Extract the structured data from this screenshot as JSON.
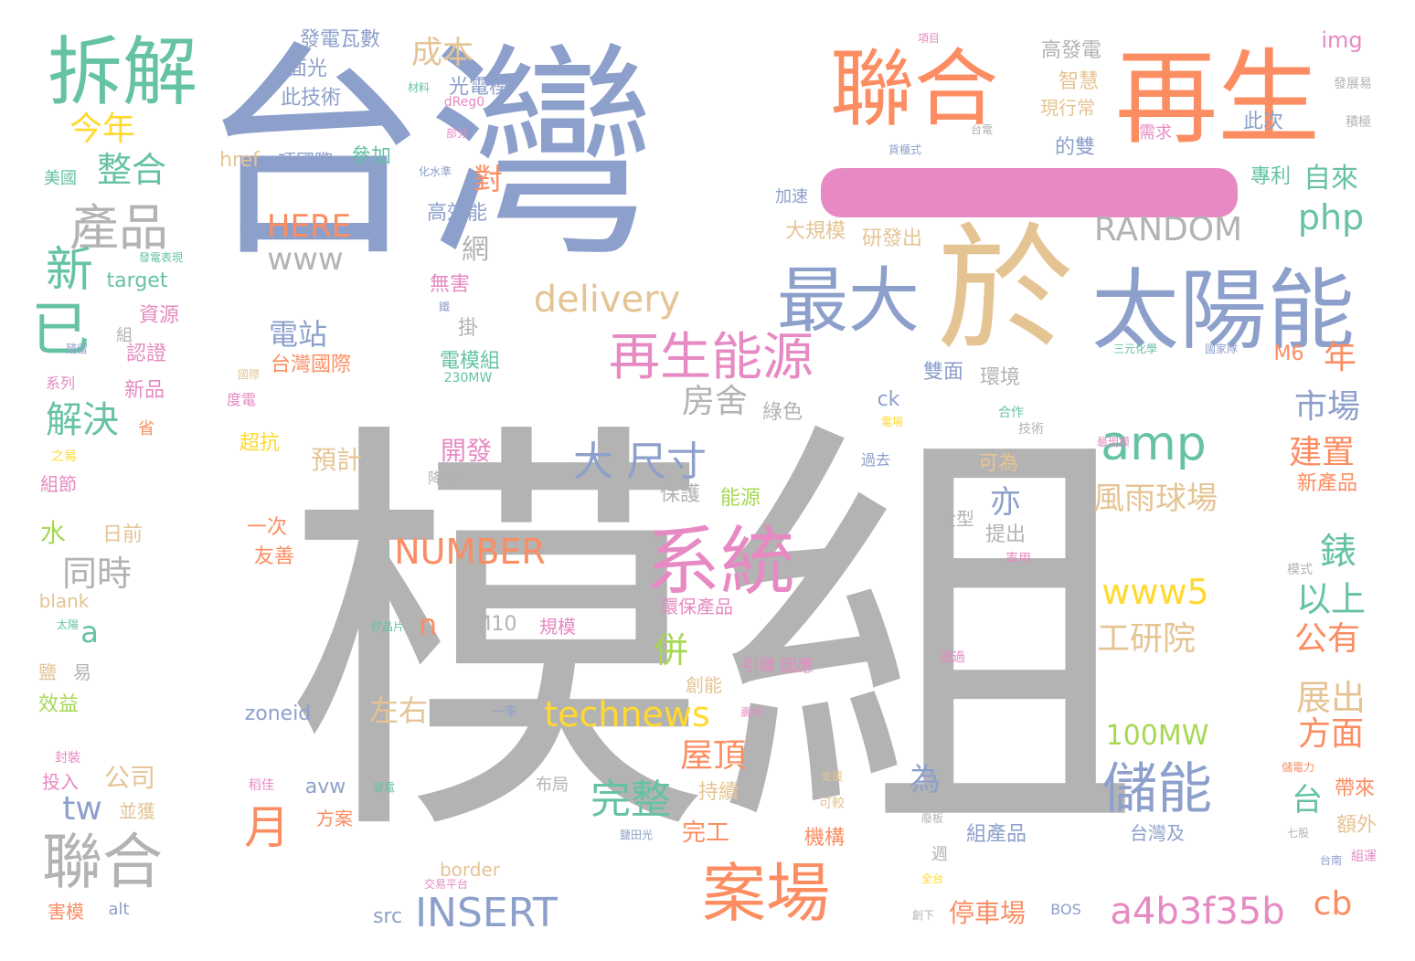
{
  "colors": {
    "gray": "#b3b3b3",
    "blue": "#8da0cb",
    "orange": "#fc8d62",
    "tan": "#e5c494",
    "green": "#66c2a5",
    "pink": "#e78ac3",
    "lime": "#a6d854",
    "yellow": "#ffd92f"
  },
  "accent_bar_color": "#e78ac3",
  "words": [
    {
      "text": "模組",
      "color": "gray"
    },
    {
      "text": "台灣",
      "color": "blue"
    },
    {
      "text": "聯合",
      "color": "orange"
    },
    {
      "text": "再生",
      "color": "orange"
    },
    {
      "text": "於",
      "color": "tan"
    },
    {
      "text": "太陽能",
      "color": "blue"
    },
    {
      "text": "最大",
      "color": "blue"
    },
    {
      "text": "拆解",
      "color": "green"
    },
    {
      "text": "系統",
      "color": "pink"
    },
    {
      "text": "案場",
      "color": "orange"
    },
    {
      "text": "再生能源",
      "color": "pink"
    },
    {
      "text": "聯合",
      "color": "gray"
    },
    {
      "text": "產品",
      "color": "gray"
    },
    {
      "text": "儲能",
      "color": "blue"
    },
    {
      "text": "已",
      "color": "green"
    },
    {
      "text": "新",
      "color": "green"
    },
    {
      "text": "月",
      "color": "orange"
    },
    {
      "text": "amp",
      "color": "green"
    },
    {
      "text": "INSERT",
      "color": "blue"
    },
    {
      "text": "a4b3f35b",
      "color": "pink"
    },
    {
      "text": "technews",
      "color": "yellow"
    },
    {
      "text": "大 尺寸",
      "color": "blue"
    },
    {
      "text": "delivery",
      "color": "tan"
    },
    {
      "text": "NUMBER",
      "color": "orange"
    },
    {
      "text": "HERE",
      "color": "orange"
    },
    {
      "text": "www",
      "color": "gray"
    },
    {
      "text": "RANDOM",
      "color": "gray"
    },
    {
      "text": "www5",
      "color": "yellow"
    },
    {
      "text": "工研院",
      "color": "tan"
    },
    {
      "text": "100MW",
      "color": "lime"
    },
    {
      "text": "完整",
      "color": "green"
    },
    {
      "text": "屋頂",
      "color": "orange"
    },
    {
      "text": "展出",
      "color": "tan"
    },
    {
      "text": "方面",
      "color": "orange"
    },
    {
      "text": "公有",
      "color": "orange"
    },
    {
      "text": "以上",
      "color": "green"
    },
    {
      "text": "錶",
      "color": "green"
    },
    {
      "text": "市場",
      "color": "blue"
    },
    {
      "text": "建置",
      "color": "orange"
    },
    {
      "text": "風雨球場",
      "color": "tan"
    },
    {
      "text": "php",
      "color": "green"
    },
    {
      "text": "自來",
      "color": "green"
    },
    {
      "text": "年",
      "color": "orange"
    },
    {
      "text": "整合",
      "color": "green"
    },
    {
      "text": "今年",
      "color": "yellow"
    },
    {
      "text": "成本",
      "color": "tan"
    },
    {
      "text": "解決",
      "color": "green"
    },
    {
      "text": "同時",
      "color": "gray"
    },
    {
      "text": "併",
      "color": "lime"
    },
    {
      "text": "房舍",
      "color": "gray"
    },
    {
      "text": "電站",
      "color": "blue"
    },
    {
      "text": "a",
      "color": "green"
    },
    {
      "text": "tw",
      "color": "blue"
    },
    {
      "text": "n",
      "color": "orange"
    },
    {
      "text": "cb",
      "color": "orange"
    },
    {
      "text": "台",
      "color": "green"
    },
    {
      "text": "為",
      "color": "blue"
    },
    {
      "text": "亦",
      "color": "blue"
    },
    {
      "text": "對",
      "color": "orange"
    },
    {
      "text": "網",
      "color": "gray"
    },
    {
      "text": "左右",
      "color": "tan"
    },
    {
      "text": "停車場",
      "color": "orange"
    },
    {
      "text": "公司",
      "color": "tan"
    },
    {
      "text": "水",
      "color": "lime"
    },
    {
      "text": "開發",
      "color": "pink"
    },
    {
      "text": "預計",
      "color": "tan"
    },
    {
      "text": "大規模",
      "color": "tan"
    },
    {
      "text": "研發出",
      "color": "tan"
    },
    {
      "text": "高效能",
      "color": "blue"
    },
    {
      "text": "無害",
      "color": "pink"
    },
    {
      "text": "掛",
      "color": "gray"
    },
    {
      "text": "台灣國際",
      "color": "orange"
    },
    {
      "text": "電模組",
      "color": "green"
    },
    {
      "text": "雙面",
      "color": "blue"
    },
    {
      "text": "環境",
      "color": "gray"
    },
    {
      "text": "綠色",
      "color": "gray"
    },
    {
      "text": "M6",
      "color": "orange"
    },
    {
      "text": "新產品",
      "color": "orange"
    },
    {
      "text": "帶來",
      "color": "orange"
    },
    {
      "text": "額外",
      "color": "tan"
    },
    {
      "text": "組產品",
      "color": "blue"
    },
    {
      "text": "台灣及",
      "color": "blue"
    },
    {
      "text": "完工",
      "color": "orange"
    },
    {
      "text": "機構",
      "color": "orange"
    },
    {
      "text": "持續",
      "color": "tan"
    },
    {
      "text": "創能",
      "color": "tan"
    },
    {
      "text": "保護",
      "color": "gray"
    },
    {
      "text": "能源",
      "color": "lime"
    },
    {
      "text": "一次",
      "color": "orange"
    },
    {
      "text": "友善",
      "color": "orange"
    },
    {
      "text": "日前",
      "color": "tan"
    },
    {
      "text": "超抗",
      "color": "yellow"
    },
    {
      "text": "ck",
      "color": "blue"
    },
    {
      "text": "可為",
      "color": "tan"
    },
    {
      "text": "大型",
      "color": "gray"
    },
    {
      "text": "提出",
      "color": "gray"
    },
    {
      "text": "環保產品",
      "color": "pink"
    },
    {
      "text": "引導",
      "color": "pink"
    },
    {
      "text": "因應",
      "color": "pink"
    },
    {
      "text": "M10",
      "color": "gray"
    },
    {
      "text": "規模",
      "color": "pink"
    },
    {
      "text": "zoneid",
      "color": "blue"
    },
    {
      "text": "avw",
      "color": "blue"
    },
    {
      "text": "方案",
      "color": "orange"
    },
    {
      "text": "border",
      "color": "tan"
    },
    {
      "text": "src",
      "color": "blue"
    },
    {
      "text": "alt",
      "color": "blue"
    },
    {
      "text": "BOS",
      "color": "blue"
    },
    {
      "text": "blank",
      "color": "tan"
    },
    {
      "text": "target",
      "color": "green"
    },
    {
      "text": "href",
      "color": "tan"
    },
    {
      "text": "img",
      "color": "pink"
    },
    {
      "text": "dReg0",
      "color": "pink"
    },
    {
      "text": "光電模",
      "color": "blue"
    },
    {
      "text": "此技術",
      "color": "blue"
    },
    {
      "text": "面光",
      "color": "blue"
    },
    {
      "text": "發電瓦數",
      "color": "blue"
    },
    {
      "text": "項國際",
      "color": "blue"
    },
    {
      "text": "參加",
      "color": "green"
    },
    {
      "text": "高發電",
      "color": "gray"
    },
    {
      "text": "智慧",
      "color": "tan"
    },
    {
      "text": "現行常",
      "color": "tan"
    },
    {
      "text": "的雙",
      "color": "blue"
    },
    {
      "text": "此次",
      "color": "blue"
    },
    {
      "text": "需求",
      "color": "pink"
    },
    {
      "text": "專利",
      "color": "green"
    },
    {
      "text": "美國",
      "color": "green"
    },
    {
      "text": "資源",
      "color": "pink"
    },
    {
      "text": "認證",
      "color": "pink"
    },
    {
      "text": "新品",
      "color": "pink"
    },
    {
      "text": "系列",
      "color": "pink"
    },
    {
      "text": "組節",
      "color": "pink"
    },
    {
      "text": "鹽",
      "color": "tan"
    },
    {
      "text": "易",
      "color": "gray"
    },
    {
      "text": "效益",
      "color": "lime"
    },
    {
      "text": "投入",
      "color": "pink"
    },
    {
      "text": "並獲",
      "color": "tan"
    },
    {
      "text": "害模",
      "color": "orange"
    },
    {
      "text": "加速",
      "color": "blue"
    },
    {
      "text": "省",
      "color": "orange"
    },
    {
      "text": "組",
      "color": "gray"
    },
    {
      "text": "度電",
      "color": "pink"
    },
    {
      "text": "過去",
      "color": "blue"
    },
    {
      "text": "技術",
      "color": "gray"
    },
    {
      "text": "合作",
      "color": "green"
    },
    {
      "text": "降低",
      "color": "gray"
    },
    {
      "text": "布局",
      "color": "gray"
    },
    {
      "text": "週",
      "color": "gray"
    },
    {
      "text": "模式",
      "color": "gray"
    },
    {
      "text": "組運",
      "color": "pink"
    },
    {
      "text": "三元化學",
      "color": "green"
    },
    {
      "text": "國家隊",
      "color": "blue"
    },
    {
      "text": "發展易",
      "color": "gray"
    },
    {
      "text": "積極",
      "color": "gray"
    },
    {
      "text": "項目",
      "color": "pink"
    },
    {
      "text": "材料",
      "color": "green"
    },
    {
      "text": "部分",
      "color": "pink"
    },
    {
      "text": "化水準",
      "color": "blue"
    },
    {
      "text": "發電表現",
      "color": "green"
    },
    {
      "text": "章下",
      "color": "blue"
    },
    {
      "text": "殘留",
      "color": "blue"
    },
    {
      "text": "鐵",
      "color": "blue"
    },
    {
      "text": "國際",
      "color": "tan"
    },
    {
      "text": "之易",
      "color": "yellow"
    },
    {
      "text": "封裝",
      "color": "pink"
    },
    {
      "text": "稻佳",
      "color": "pink"
    },
    {
      "text": "發電",
      "color": "green"
    },
    {
      "text": "交易平台",
      "color": "pink"
    },
    {
      "text": "可較",
      "color": "tan"
    },
    {
      "text": "支援",
      "color": "tan"
    },
    {
      "text": "台南",
      "color": "blue"
    },
    {
      "text": "七股",
      "color": "gray"
    },
    {
      "text": "創下",
      "color": "gray"
    },
    {
      "text": "率用",
      "color": "pink"
    },
    {
      "text": "230MW",
      "color": "green"
    },
    {
      "text": "矽晶片",
      "color": "green"
    },
    {
      "text": "太陽",
      "color": "green"
    },
    {
      "text": "一率",
      "color": "blue"
    },
    {
      "text": "台電",
      "color": "gray"
    },
    {
      "text": "廢板",
      "color": "gray"
    },
    {
      "text": "貨櫃式",
      "color": "blue"
    },
    {
      "text": "最現模",
      "color": "pink"
    },
    {
      "text": "電場",
      "color": "yellow"
    },
    {
      "text": "透過",
      "color": "pink"
    },
    {
      "text": "儲電力",
      "color": "orange"
    },
    {
      "text": "壽命",
      "color": "pink"
    },
    {
      "text": "鹽田光",
      "color": "blue"
    },
    {
      "text": "全台",
      "color": "yellow"
    }
  ]
}
